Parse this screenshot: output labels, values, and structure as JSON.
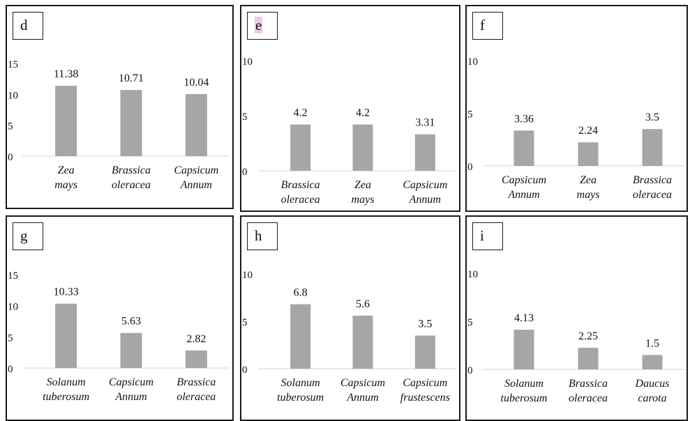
{
  "chart_data": [
    {
      "panel": "d",
      "type": "bar",
      "categories": [
        "Zea mays",
        "Brassica oleracea",
        "Capsicum Annum"
      ],
      "values": [
        11.38,
        10.71,
        10.04
      ],
      "ylim": [
        0,
        15
      ],
      "yticks": [
        0,
        5,
        10,
        15
      ],
      "data_labels": [
        "11.38",
        "10.71",
        "10.04"
      ],
      "bar_color": "#a6a6a6"
    },
    {
      "panel": "e",
      "type": "bar",
      "categories": [
        "Brassica oleracea",
        "Zea mays",
        "Capsicum Annum"
      ],
      "values": [
        4.2,
        4.2,
        3.31
      ],
      "ylim": [
        0,
        10
      ],
      "yticks": [
        0,
        5,
        10
      ],
      "data_labels": [
        "4.2",
        "4.2",
        "3.31"
      ],
      "bar_color": "#a6a6a6"
    },
    {
      "panel": "f",
      "type": "bar",
      "categories": [
        "Capsicum Annum",
        "Zea mays",
        "Brassica oleracea"
      ],
      "values": [
        3.36,
        2.24,
        3.5
      ],
      "ylim": [
        0,
        10
      ],
      "yticks": [
        0,
        5,
        10
      ],
      "data_labels": [
        "3.36",
        "2.24",
        "3.5"
      ],
      "bar_color": "#a6a6a6"
    },
    {
      "panel": "g",
      "type": "bar",
      "categories": [
        "Solanum tuberosum",
        "Capsicum Annum",
        "Brassica oleracea"
      ],
      "values": [
        10.33,
        5.63,
        2.82
      ],
      "ylim": [
        0,
        15
      ],
      "yticks": [
        0,
        5,
        10,
        15
      ],
      "data_labels": [
        "10.33",
        "5.63",
        "2.82"
      ],
      "bar_color": "#a6a6a6"
    },
    {
      "panel": "h",
      "type": "bar",
      "categories": [
        "Solanum tuberosum",
        "Capsicum Annum",
        "Capsicum frustescens"
      ],
      "values": [
        6.8,
        5.6,
        3.5
      ],
      "ylim": [
        0,
        10
      ],
      "yticks": [
        0,
        5,
        10
      ],
      "data_labels": [
        "6.8",
        "5.6",
        "3.5"
      ],
      "bar_color": "#a6a6a6"
    },
    {
      "panel": "i",
      "type": "bar",
      "categories": [
        "Solanum tuberosum",
        "Brassica oleracea",
        "Daucus carota"
      ],
      "values": [
        4.13,
        2.25,
        1.5
      ],
      "ylim": [
        0,
        10
      ],
      "yticks": [
        0,
        5,
        10
      ],
      "data_labels": [
        "4.13",
        "2.25",
        "1.5"
      ],
      "bar_color": "#a6a6a6"
    }
  ]
}
